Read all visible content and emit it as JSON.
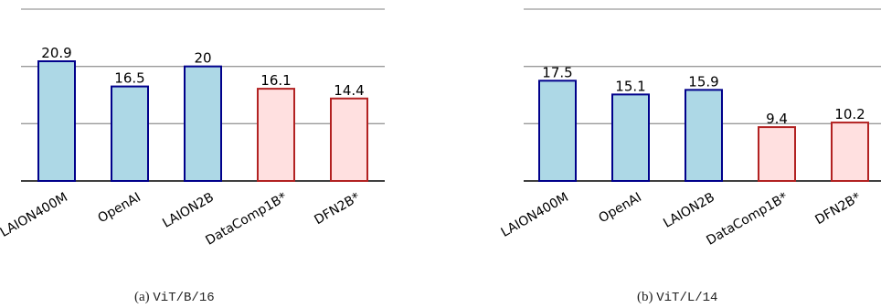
{
  "chart_data": [
    {
      "type": "bar",
      "categories": [
        "LAION400M",
        "OpenAI",
        "LAION2B",
        "DataComp1B*",
        "DFN2B*"
      ],
      "values": [
        20.9,
        16.5,
        20,
        16.1,
        14.4
      ],
      "value_labels": [
        "20.9",
        "16.5",
        "20",
        "16.1",
        "14.4"
      ],
      "bar_groups": [
        "open",
        "open",
        "open",
        "filtered",
        "filtered"
      ],
      "ylim": [
        0,
        30
      ],
      "gridlines": [
        10,
        20,
        30
      ],
      "grid": true,
      "title": "",
      "xlabel": "",
      "ylabel": "",
      "caption_prefix": "(a)",
      "caption_model": "ViT/B/16"
    },
    {
      "type": "bar",
      "categories": [
        "LAION400M",
        "OpenAI",
        "LAION2B",
        "DataComp1B*",
        "DFN2B*"
      ],
      "values": [
        17.5,
        15.1,
        15.9,
        9.4,
        10.2
      ],
      "value_labels": [
        "17.5",
        "15.1",
        "15.9",
        "9.4",
        "10.2"
      ],
      "bar_groups": [
        "open",
        "open",
        "open",
        "filtered",
        "filtered"
      ],
      "ylim": [
        0,
        30
      ],
      "gridlines": [
        10,
        20,
        30
      ],
      "grid": true,
      "title": "",
      "xlabel": "",
      "ylabel": "",
      "caption_prefix": "(b)",
      "caption_model": "ViT/L/14"
    }
  ],
  "colors": {
    "open_fill": "#add8e6",
    "open_edge": "#00008b",
    "filtered_fill": "#ffe0e0",
    "filtered_edge": "#b22222",
    "grid": "#9a9a9a",
    "axis": "#000000"
  }
}
